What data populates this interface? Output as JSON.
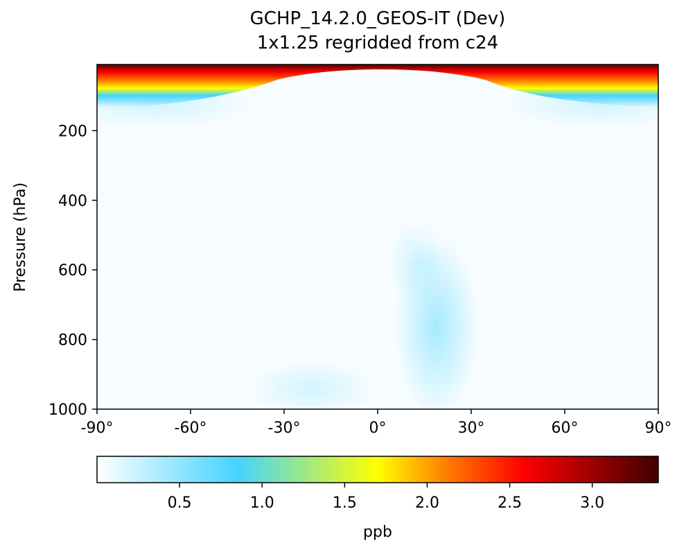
{
  "chart_data": {
    "type": "heatmap",
    "title": "GCHP_14.2.0_GEOS-IT (Dev)",
    "subtitle": "1x1.25 regridded from c24",
    "xlabel": "",
    "ylabel": "Pressure (hPa)",
    "x_range": [
      -90,
      90
    ],
    "y_range_hPa": [
      1000,
      10
    ],
    "y_axis": "inverted",
    "x_ticks": [
      -90,
      -60,
      -30,
      0,
      30,
      60,
      90
    ],
    "x_tick_labels": [
      "-90°",
      "-60°",
      "-30°",
      "0°",
      "30°",
      "60°",
      "90°"
    ],
    "y_ticks": [
      200,
      400,
      600,
      800,
      1000
    ],
    "y_tick_labels": [
      "200",
      "400",
      "600",
      "800",
      "1000"
    ],
    "colorbar": {
      "label": "ppb",
      "range": [
        0,
        3.4
      ],
      "ticks": [
        0.5,
        1.0,
        1.5,
        2.0,
        2.5,
        3.0
      ],
      "tick_labels": [
        "0.5",
        "1.0",
        "1.5",
        "2.0",
        "2.5",
        "3.0"
      ],
      "colormap": [
        "#ffffff",
        "#44d4ff",
        "#ffff00",
        "#ff8000",
        "#ff0000",
        "#400000"
      ],
      "orientation": "horizontal"
    },
    "features": [
      {
        "region": "stratosphere top (~10-60 hPa)",
        "lat": "all",
        "value_ppb": "2.5-3.4"
      },
      {
        "region": "polar upper band (~60-160 hPa)",
        "lat": "poleward of 30°",
        "value_ppb": "0.6-1.0"
      },
      {
        "region": "tropical lower troposphere (~700-1000 hPa)",
        "lat": "10°-30°N",
        "value_ppb": "0.3-0.5"
      },
      {
        "region": "free troposphere",
        "lat": "all",
        "value_ppb": "0.05-0.15"
      }
    ]
  }
}
